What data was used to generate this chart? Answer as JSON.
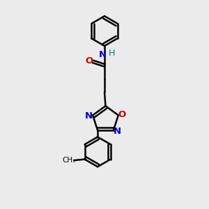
{
  "bg_color": "#ebebeb",
  "bond_color": "#000000",
  "N_color": "#0000cc",
  "O_color": "#cc0000",
  "NH_color": "#008080",
  "line_width": 1.8,
  "font_size": 9.5,
  "fig_width": 3.0,
  "fig_height": 3.0,
  "dpi": 100,
  "xlim": [
    0,
    10
  ],
  "ylim": [
    0,
    10
  ]
}
